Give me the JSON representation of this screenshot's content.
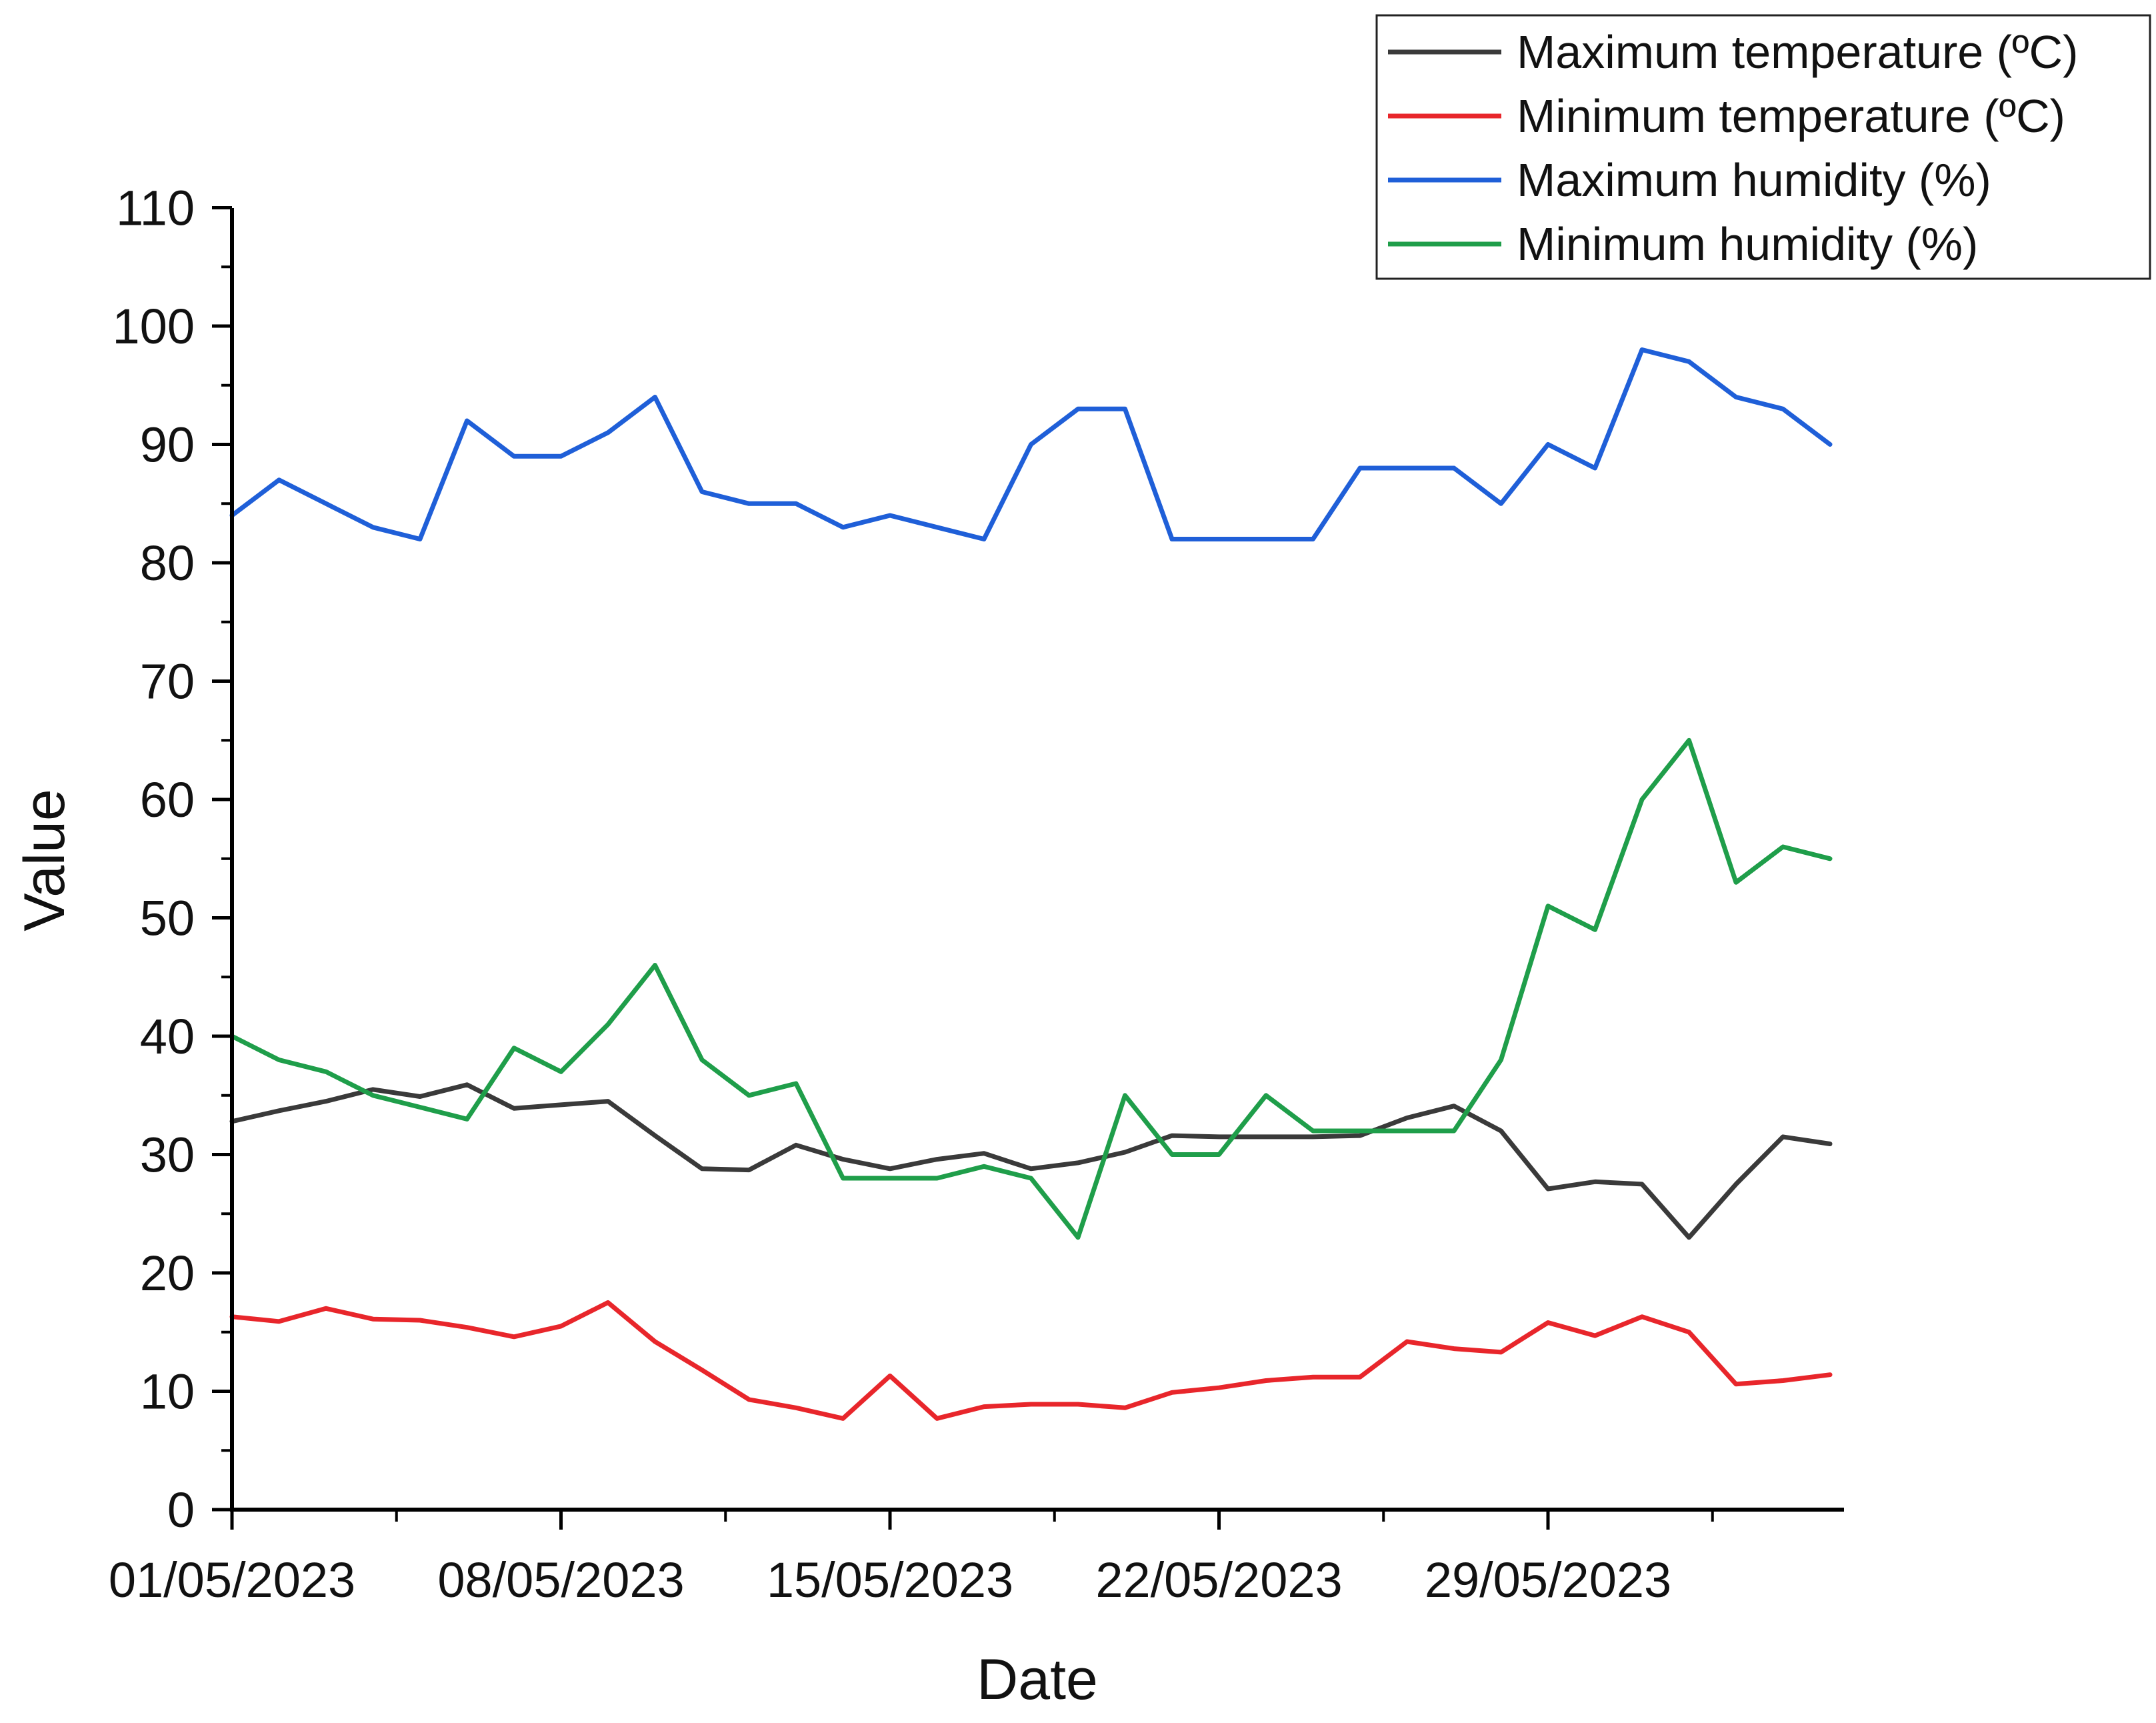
{
  "chart_data": {
    "type": "line",
    "title": "",
    "xlabel": "Date",
    "ylabel": "Value",
    "ylim": [
      0,
      110
    ],
    "yticks": [
      0,
      10,
      20,
      30,
      40,
      50,
      60,
      70,
      80,
      90,
      100,
      110
    ],
    "grid": false,
    "legend_position": "top-right",
    "x": [
      "01/05/2023",
      "02/05/2023",
      "03/05/2023",
      "04/05/2023",
      "05/05/2023",
      "06/05/2023",
      "07/05/2023",
      "08/05/2023",
      "09/05/2023",
      "10/05/2023",
      "11/05/2023",
      "12/05/2023",
      "13/05/2023",
      "14/05/2023",
      "15/05/2023",
      "16/05/2023",
      "17/05/2023",
      "18/05/2023",
      "19/05/2023",
      "20/05/2023",
      "21/05/2023",
      "22/05/2023",
      "23/05/2023",
      "24/05/2023",
      "25/05/2023",
      "26/05/2023",
      "27/05/2023",
      "28/05/2023",
      "29/05/2023",
      "30/05/2023",
      "31/05/2023",
      "01/06/2023",
      "02/06/2023",
      "03/06/2023",
      "04/06/2023"
    ],
    "xtick_labels": [
      {
        "index": 0,
        "label": "01/05/2023"
      },
      {
        "index": 7,
        "label": "08/05/2023"
      },
      {
        "index": 14,
        "label": "15/05/2023"
      },
      {
        "index": 21,
        "label": "22/05/2023"
      },
      {
        "index": 28,
        "label": "29/05/2023"
      }
    ],
    "series": [
      {
        "name": "Maximum temperature (ºC)",
        "color": "#3a3a3a",
        "values": [
          32.8,
          33.7,
          34.5,
          35.5,
          34.9,
          35.9,
          33.9,
          34.2,
          34.5,
          31.6,
          28.8,
          28.7,
          30.8,
          29.6,
          28.8,
          29.6,
          30.1,
          28.8,
          29.3,
          30.2,
          31.6,
          31.5,
          31.5,
          31.5,
          31.6,
          33.1,
          34.1,
          32.0,
          27.1,
          27.7,
          27.5,
          23.0,
          27.5,
          31.5,
          30.9
        ]
      },
      {
        "name": "Minimum temperature (ºC)",
        "color": "#e8262b",
        "values": [
          16.3,
          15.9,
          17.0,
          16.1,
          16.0,
          15.4,
          14.6,
          15.5,
          17.5,
          14.2,
          11.8,
          9.3,
          8.6,
          7.7,
          11.3,
          7.7,
          8.7,
          8.9,
          8.9,
          8.6,
          9.9,
          10.3,
          10.9,
          11.2,
          11.2,
          14.2,
          13.6,
          13.3,
          15.8,
          14.7,
          16.3,
          15.0,
          10.6,
          10.9,
          11.4
        ]
      },
      {
        "name": "Maximum humidity (%)",
        "color": "#1f5fd8",
        "values": [
          84,
          87,
          85,
          83,
          82,
          92,
          89,
          89,
          91,
          94,
          86,
          85,
          85,
          83,
          84,
          83,
          82,
          90,
          93,
          93,
          82,
          82,
          82,
          82,
          88,
          88,
          88,
          85,
          90,
          88,
          98,
          97,
          94,
          93,
          90
        ]
      },
      {
        "name": "Minimum humidity (%)",
        "color": "#1f9e4a",
        "values": [
          40,
          38,
          37,
          35,
          34,
          33,
          39,
          37,
          41,
          46,
          38,
          35,
          36,
          28,
          28,
          28,
          29,
          28,
          23,
          35,
          30,
          30,
          35,
          32,
          32,
          32,
          32,
          38,
          51,
          49,
          60,
          65,
          53,
          56,
          55
        ]
      }
    ]
  }
}
